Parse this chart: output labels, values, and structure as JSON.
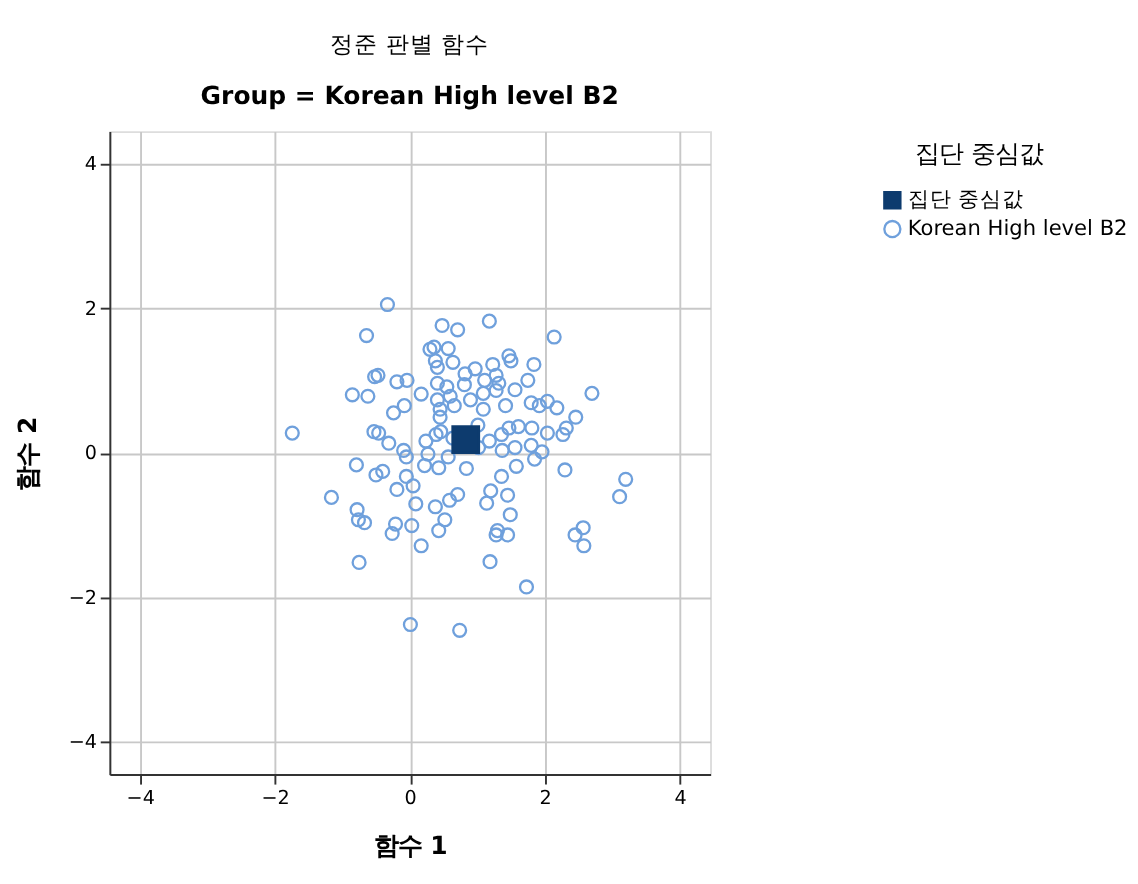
{
  "chart_data": {
    "type": "scatter",
    "title": "정준 판별 함수",
    "subtitle": "Group = Korean High level B2",
    "xlabel": "함수 1",
    "ylabel": "함수 2",
    "legend_title": "집단 중심값",
    "legend": "top right",
    "grid": true,
    "xlim": [
      -4.45,
      4.45
    ],
    "ylim": [
      -4.45,
      4.45
    ],
    "xticks": [
      -4,
      -2,
      0,
      2,
      4
    ],
    "yticks": [
      -4,
      -2,
      0,
      2,
      4
    ],
    "series": [
      {
        "name": "Korean High level B2",
        "color": "#6fa0dc",
        "marker": "circle",
        "x": [
          -0.33,
          0.48,
          0.71,
          1.18,
          -0.64,
          2.14,
          0.3,
          0.36,
          0.57,
          1.47,
          1.5,
          0.38,
          0.64,
          0.41,
          0.97,
          1.23,
          1.84,
          0.82,
          1.28,
          -0.47,
          -0.52,
          -0.19,
          -0.04,
          0.41,
          0.55,
          0.81,
          1.11,
          1.75,
          1.32,
          -0.85,
          -0.62,
          0.17,
          0.41,
          0.6,
          0.9,
          1.09,
          1.28,
          1.56,
          2.7,
          -0.08,
          -0.24,
          0.45,
          0.66,
          1.09,
          1.42,
          1.8,
          1.92,
          2.04,
          2.18,
          2.46,
          0.45,
          1.01,
          1.47,
          1.61,
          1.81,
          2.32,
          -1.74,
          -0.53,
          -0.46,
          -0.31,
          0.24,
          0.39,
          0.46,
          0.64,
          1.18,
          1.36,
          2.04,
          2.27,
          -0.09,
          -0.05,
          0.27,
          0.57,
          1.02,
          1.37,
          1.56,
          1.8,
          1.96,
          1.85,
          -0.79,
          0.22,
          0.43,
          0.84,
          1.58,
          2.3,
          -0.4,
          -0.5,
          -0.05,
          1.36,
          3.2,
          0.05,
          -0.19,
          0.71,
          1.2,
          1.45,
          -1.16,
          3.11,
          0.09,
          0.59,
          1.14,
          0.38,
          -0.78,
          1.49,
          -0.76,
          -0.67,
          -0.21,
          0.03,
          0.52,
          2.57,
          -0.26,
          0.43,
          1.3,
          1.28,
          1.45,
          2.45,
          2.58,
          0.17,
          -0.75,
          1.19,
          1.73,
          0.01,
          0.74
        ],
        "values": [
          2.05,
          1.76,
          1.7,
          1.82,
          1.62,
          1.6,
          1.43,
          1.46,
          1.44,
          1.34,
          1.27,
          1.27,
          1.25,
          1.18,
          1.16,
          1.22,
          1.22,
          1.09,
          1.07,
          1.07,
          1.05,
          0.98,
          1.0,
          0.96,
          0.91,
          0.94,
          1.0,
          1.0,
          0.96,
          0.8,
          0.78,
          0.81,
          0.73,
          0.78,
          0.73,
          0.82,
          0.86,
          0.87,
          0.82,
          0.65,
          0.55,
          0.6,
          0.65,
          0.6,
          0.65,
          0.69,
          0.65,
          0.71,
          0.62,
          0.49,
          0.49,
          0.38,
          0.34,
          0.36,
          0.34,
          0.34,
          0.27,
          0.29,
          0.27,
          0.13,
          0.16,
          0.25,
          0.29,
          0.2,
          0.16,
          0.25,
          0.27,
          0.25,
          0.03,
          -0.06,
          -0.02,
          -0.06,
          0.07,
          0.03,
          0.07,
          0.1,
          0.01,
          -0.09,
          -0.17,
          -0.18,
          -0.21,
          -0.22,
          -0.19,
          -0.24,
          -0.26,
          -0.31,
          -0.33,
          -0.33,
          -0.37,
          -0.46,
          -0.51,
          -0.58,
          -0.53,
          -0.59,
          -0.62,
          -0.61,
          -0.71,
          -0.66,
          -0.7,
          -0.75,
          -0.79,
          -0.86,
          -0.93,
          -0.97,
          -0.99,
          -1.01,
          -0.93,
          -1.04,
          -1.12,
          -1.08,
          -1.08,
          -1.14,
          -1.14,
          -1.14,
          -1.29,
          -1.29,
          -1.52,
          -1.51,
          -1.86,
          -2.38,
          -2.46
        ]
      },
      {
        "name": "집단 중심값",
        "color": "#0d3b6e",
        "marker": "square",
        "x": [
          0.83
        ],
        "values": [
          0.18
        ]
      }
    ]
  }
}
